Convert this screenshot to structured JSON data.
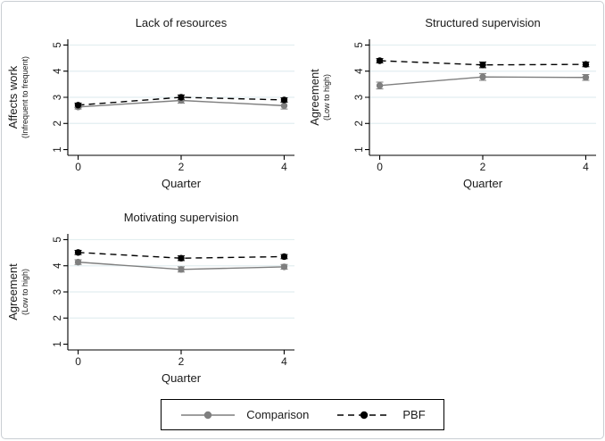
{
  "figure": {
    "colors": {
      "comparison": "#7f7f7f",
      "pbf": "#000000",
      "gridline": "#e2eef0",
      "axis": "#000000"
    },
    "legend": {
      "items": [
        {
          "label": "Comparison",
          "color": "#7f7f7f",
          "dash": false
        },
        {
          "label": "PBF",
          "color": "#000000",
          "dash": true
        }
      ]
    }
  },
  "chart_data": [
    {
      "type": "line",
      "title": "Lack of resources",
      "xlabel": "Quarter",
      "ylabel": "Affects work",
      "ylabel_sub": "(Infrequent to frequent)",
      "x": [
        0,
        2,
        4
      ],
      "xticks": [
        0,
        2,
        4
      ],
      "yticks": [
        1,
        2,
        3,
        4,
        5
      ],
      "xlim": [
        -0.2,
        4.2
      ],
      "ylim": [
        1,
        5
      ],
      "grid": true,
      "series": [
        {
          "name": "Comparison",
          "color": "#7f7f7f",
          "dash": false,
          "marker": "circle",
          "values": [
            2.63,
            2.88,
            2.68
          ],
          "ci": [
            0.08,
            0.1,
            0.13
          ]
        },
        {
          "name": "PBF",
          "color": "#000000",
          "dash": true,
          "marker": "circle",
          "values": [
            2.7,
            3.0,
            2.9
          ],
          "ci": [
            0.08,
            0.09,
            0.08
          ]
        }
      ]
    },
    {
      "type": "line",
      "title": "Structured supervision",
      "xlabel": "Quarter",
      "ylabel": "Agreement",
      "ylabel_sub": "(Low to high)",
      "x": [
        0,
        2,
        4
      ],
      "xticks": [
        0,
        2,
        4
      ],
      "yticks": [
        1,
        2,
        3,
        4,
        5
      ],
      "xlim": [
        -0.2,
        4.2
      ],
      "ylim": [
        1,
        5
      ],
      "grid": true,
      "series": [
        {
          "name": "Comparison",
          "color": "#7f7f7f",
          "dash": false,
          "marker": "circle",
          "values": [
            3.45,
            3.78,
            3.76
          ],
          "ci": [
            0.13,
            0.13,
            0.11
          ]
        },
        {
          "name": "PBF",
          "color": "#000000",
          "dash": true,
          "marker": "circle",
          "values": [
            4.4,
            4.24,
            4.26
          ],
          "ci": [
            0.08,
            0.11,
            0.09
          ]
        }
      ]
    },
    {
      "type": "line",
      "title": "Motivating supervision",
      "xlabel": "Quarter",
      "ylabel": "Agreement",
      "ylabel_sub": "(Low to high)",
      "x": [
        0,
        2,
        4
      ],
      "xticks": [
        0,
        2,
        4
      ],
      "yticks": [
        1,
        2,
        3,
        4,
        5
      ],
      "xlim": [
        -0.2,
        4.2
      ],
      "ylim": [
        1,
        5
      ],
      "grid": true,
      "series": [
        {
          "name": "Comparison",
          "color": "#7f7f7f",
          "dash": false,
          "marker": "circle",
          "values": [
            4.14,
            3.86,
            3.96
          ],
          "ci": [
            0.09,
            0.1,
            0.09
          ]
        },
        {
          "name": "PBF",
          "color": "#000000",
          "dash": true,
          "marker": "circle",
          "values": [
            4.51,
            4.29,
            4.35
          ],
          "ci": [
            0.08,
            0.09,
            0.08
          ]
        }
      ]
    }
  ]
}
